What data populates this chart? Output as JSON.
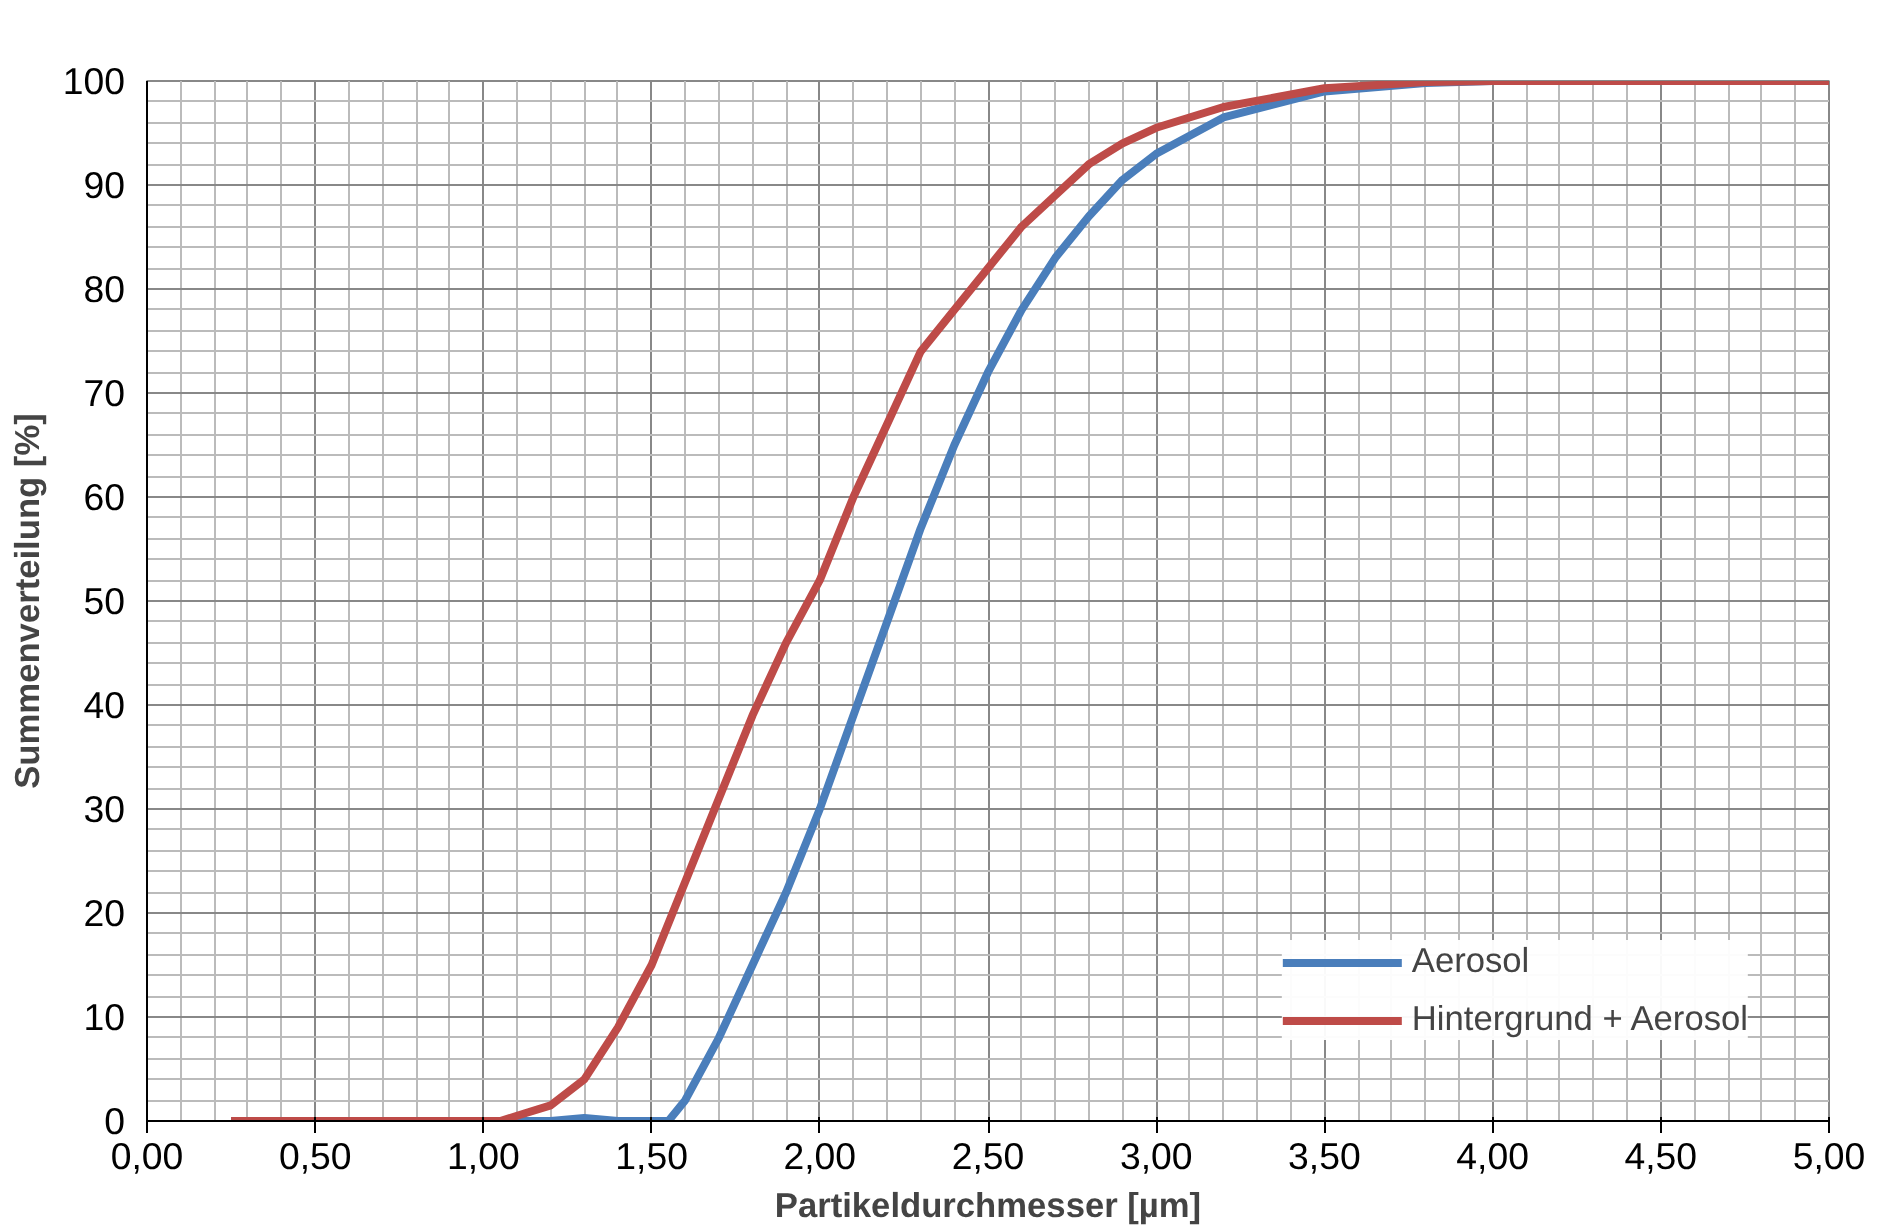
{
  "chart_data": {
    "type": "line",
    "xlabel": "Partikeldurchmesser [µm]",
    "ylabel": "Summenverteilung [%]",
    "xlim": [
      0,
      5
    ],
    "ylim": [
      0,
      100
    ],
    "xticks": [
      {
        "value": 0,
        "label": "0,00"
      },
      {
        "value": 0.5,
        "label": "0,50"
      },
      {
        "value": 1,
        "label": "1,00"
      },
      {
        "value": 1.5,
        "label": "1,50"
      },
      {
        "value": 2,
        "label": "2,00"
      },
      {
        "value": 2.5,
        "label": "2,50"
      },
      {
        "value": 3,
        "label": "3,00"
      },
      {
        "value": 3.5,
        "label": "3,50"
      },
      {
        "value": 4,
        "label": "4,00"
      },
      {
        "value": 4.5,
        "label": "4,50"
      },
      {
        "value": 5,
        "label": "5,00"
      }
    ],
    "yticks": [
      0,
      10,
      20,
      30,
      40,
      50,
      60,
      70,
      80,
      90,
      100
    ],
    "grid": true,
    "legend": "bottom right",
    "marker": "none",
    "line_style": "solid",
    "series": [
      {
        "name": "Aerosol",
        "color": "#4a7ebb",
        "x": [
          0.25,
          1.2,
          1.3,
          1.4,
          1.55,
          1.6,
          1.7,
          1.8,
          1.9,
          2.0,
          2.1,
          2.2,
          2.3,
          2.4,
          2.5,
          2.6,
          2.7,
          2.8,
          2.9,
          3.0,
          3.2,
          3.5,
          3.8,
          4.0,
          5.0
        ],
        "values": [
          0,
          0,
          0.3,
          0,
          0,
          2,
          8,
          15,
          22,
          30,
          39,
          48,
          57,
          65,
          72,
          78,
          83,
          87,
          90.5,
          93,
          96.5,
          99,
          99.8,
          100,
          100
        ]
      },
      {
        "name": "Hintergrund + Aerosol",
        "color": "#be4b48",
        "x": [
          0.25,
          1.05,
          1.1,
          1.2,
          1.3,
          1.4,
          1.5,
          1.6,
          1.7,
          1.8,
          1.9,
          2.0,
          2.1,
          2.2,
          2.3,
          2.4,
          2.5,
          2.6,
          2.7,
          2.8,
          2.9,
          3.0,
          3.2,
          3.5,
          3.8,
          4.0,
          5.0
        ],
        "values": [
          0,
          0,
          0.5,
          1.5,
          4,
          9,
          15,
          23,
          31,
          39,
          46,
          52,
          60,
          67,
          74,
          78,
          82,
          86,
          89,
          92,
          94,
          95.5,
          97.5,
          99.3,
          99.9,
          100,
          100
        ]
      }
    ]
  }
}
